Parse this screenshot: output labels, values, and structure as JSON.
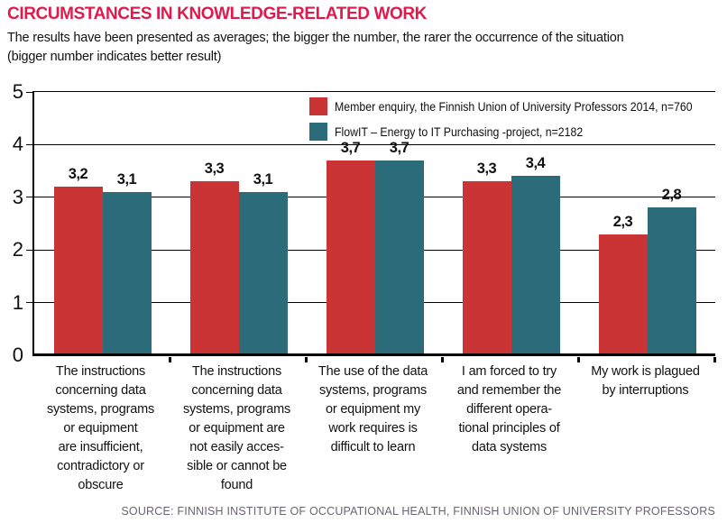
{
  "header": {
    "title": "CIRCUMSTANCES IN KNOWLEDGE-RELATED WORK",
    "subtitle_line1": "The results have been presented as averages; the bigger the number, the rarer the occurrence of the situation",
    "subtitle_line2": "(bigger number indicates better result)"
  },
  "chart_data": {
    "type": "bar",
    "title": "CIRCUMSTANCES IN KNOWLEDGE-RELATED WORK",
    "categories": [
      "The instructions\nconcerning data\nsystems, programs\nor equipment\nare insufficient,\ncontradictory or\nobscure",
      "The instructions\nconcerning data\nsystems, programs\nor equipment are\nnot easily acces-\nsible or cannot be\nfound",
      "The use of the data\nsystems, programs\nor equipment my\nwork requires is\ndifficult to learn",
      "I am forced to try\nand remember the\ndifferent opera-\ntional principles of\ndata systems",
      "My work is plagued\nby interruptions"
    ],
    "series": [
      {
        "name": "Member enquiry, the Finnish Union of University Professors 2014, n=760",
        "color": "#cb3434",
        "values": [
          3.2,
          3.3,
          3.7,
          3.3,
          2.3
        ],
        "value_labels": [
          "3,2",
          "3,3",
          "3,7",
          "3,3",
          "2,3"
        ]
      },
      {
        "name": "FlowIT – Energy to IT Purchasing -project, n=2182",
        "color": "#2b6b7a",
        "values": [
          3.1,
          3.1,
          3.7,
          3.4,
          2.8
        ],
        "value_labels": [
          "3,1",
          "3,1",
          "3,7",
          "3,4",
          "2,8"
        ]
      }
    ],
    "ylim": [
      0,
      5
    ],
    "yticks": [
      "0",
      "1",
      "2",
      "3",
      "4",
      "5"
    ],
    "grid": true,
    "legend_position": "top-right-inside",
    "decimal_separator": ","
  },
  "footer": {
    "source": "SOURCE: FINNISH INSTITUTE OF OCCUPATIONAL HEALTH, FINNISH UNION OF UNIVERSITY PROFESSORS"
  }
}
